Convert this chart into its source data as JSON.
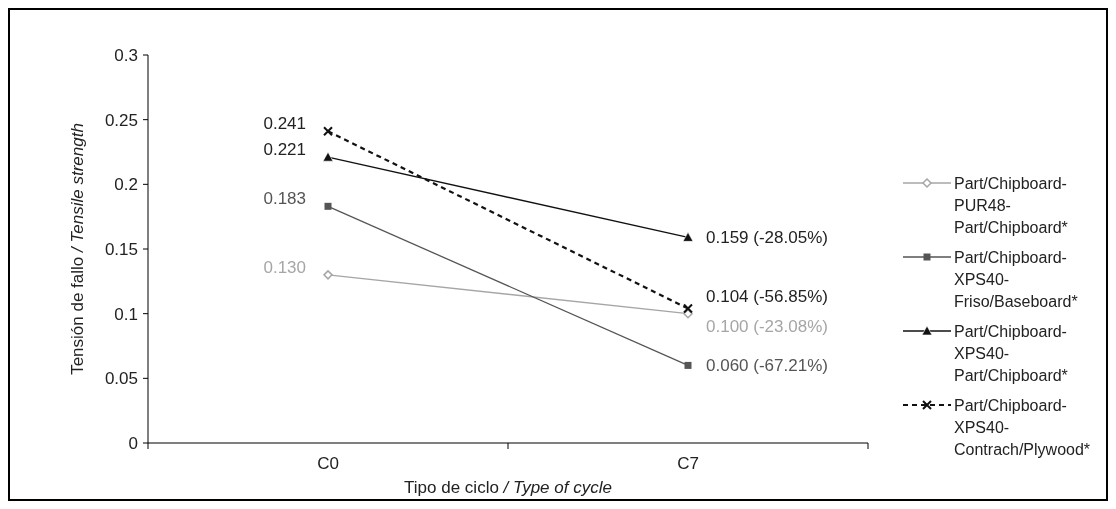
{
  "chart_data": {
    "type": "line",
    "xlabel": "Tipo de ciclo / Type of cycle",
    "ylabel": "Tensión de fallo / Tensile strength",
    "categories": [
      "C0",
      "C7"
    ],
    "ylim": [
      0,
      0.3
    ],
    "yticks": [
      {
        "value": 0,
        "label": "0"
      },
      0.05,
      {
        "value": 0.1,
        "label": "0.1"
      },
      0.15,
      {
        "value": 0.2,
        "label": "0.2"
      },
      0.25,
      {
        "value": 0.3,
        "label": "0.3"
      }
    ],
    "grid": false,
    "legend": "right",
    "series": [
      {
        "name": "Part/Chipboard-PUR48-Part/Chipboard*",
        "color": "#a6a6a6",
        "values": [
          0.13,
          0.1
        ],
        "value_labels": [
          "0.130",
          "0.100 (-23.08%)"
        ],
        "marker": "diamond",
        "line_style": "solid"
      },
      {
        "name": "Part/Chipboard-XPS40-Friso/Baseboard*",
        "color": "#555555",
        "values": [
          0.183,
          0.06
        ],
        "value_labels": [
          "0.183",
          "0.060 (-67.21%)"
        ],
        "marker": "square",
        "line_style": "solid"
      },
      {
        "name": "Part/Chipboard-XPS40-Part/Chipboard*",
        "color": "#111111",
        "values": [
          0.221,
          0.159
        ],
        "value_labels": [
          "0.221",
          "0.159 (-28.05%)"
        ],
        "marker": "triangle",
        "line_style": "solid"
      },
      {
        "name": "Part/Chipboard-XPS40-Contrach/Plywood*",
        "color": "#111111",
        "values": [
          0.241,
          0.104
        ],
        "value_labels": [
          "0.241",
          "0.104 (-56.85%)"
        ],
        "marker": "cross",
        "line_style": "dashed"
      }
    ]
  }
}
